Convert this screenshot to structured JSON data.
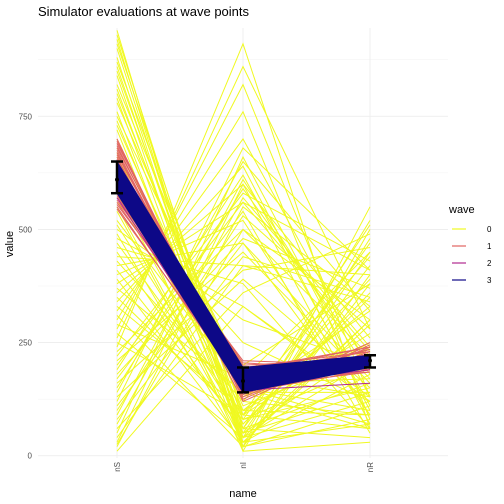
{
  "chart_data": {
    "type": "line",
    "title": "Simulator evaluations at wave points",
    "xlabel": "name",
    "ylabel": "value",
    "categories": [
      "nS",
      "nI",
      "nR"
    ],
    "ylim": [
      -5,
      945
    ],
    "yticks": [
      0,
      250,
      500,
      750
    ],
    "grid": true,
    "legend": {
      "title": "wave",
      "placement": "right",
      "entries": [
        {
          "label": "0",
          "color": "#F0F921"
        },
        {
          "label": "1",
          "color": "#E16462"
        },
        {
          "label": "2",
          "color": "#B12A90"
        },
        {
          "label": "3",
          "color": "#0D0887"
        }
      ]
    },
    "series": [
      {
        "wave": "0",
        "color": "#F0F921",
        "lines": [
          [
            940,
            10,
            30
          ],
          [
            930,
            60,
            40
          ],
          [
            920,
            20,
            80
          ],
          [
            910,
            90,
            60
          ],
          [
            900,
            40,
            120
          ],
          [
            880,
            30,
            70
          ],
          [
            870,
            120,
            90
          ],
          [
            860,
            50,
            140
          ],
          [
            850,
            80,
            200
          ],
          [
            840,
            20,
            110
          ],
          [
            820,
            150,
            100
          ],
          [
            810,
            60,
            160
          ],
          [
            800,
            100,
            250
          ],
          [
            790,
            40,
            300
          ],
          [
            780,
            140,
            60
          ],
          [
            760,
            30,
            180
          ],
          [
            750,
            180,
            130
          ],
          [
            740,
            70,
            350
          ],
          [
            730,
            110,
            220
          ],
          [
            720,
            20,
            400
          ],
          [
            700,
            90,
            270
          ],
          [
            680,
            160,
            170
          ],
          [
            670,
            50,
            450
          ],
          [
            660,
            130,
            320
          ],
          [
            650,
            80,
            150
          ],
          [
            640,
            200,
            380
          ],
          [
            620,
            10,
            500
          ],
          [
            600,
            100,
            90
          ],
          [
            580,
            60,
            420
          ],
          [
            560,
            250,
            120
          ],
          [
            550,
            40,
            480
          ],
          [
            540,
            30,
            300
          ],
          [
            520,
            150,
            70
          ],
          [
            510,
            70,
            360
          ],
          [
            500,
            300,
            200
          ],
          [
            490,
            20,
            550
          ],
          [
            480,
            330,
            130
          ],
          [
            470,
            90,
            390
          ],
          [
            460,
            380,
            60
          ],
          [
            450,
            50,
            240
          ],
          [
            440,
            420,
            340
          ],
          [
            430,
            120,
            440
          ],
          [
            420,
            470,
            170
          ],
          [
            410,
            60,
            520
          ],
          [
            400,
            520,
            90
          ],
          [
            390,
            30,
            290
          ],
          [
            380,
            560,
            410
          ],
          [
            370,
            140,
            140
          ],
          [
            360,
            600,
            260
          ],
          [
            350,
            80,
            470
          ],
          [
            340,
            640,
            100
          ],
          [
            330,
            100,
            330
          ],
          [
            320,
            700,
            190
          ],
          [
            310,
            20,
            380
          ],
          [
            300,
            760,
            80
          ],
          [
            290,
            170,
            450
          ],
          [
            280,
            820,
            130
          ],
          [
            270,
            40,
            210
          ],
          [
            260,
            860,
            280
          ],
          [
            250,
            90,
            510
          ],
          [
            240,
            910,
            60
          ],
          [
            230,
            500,
            300
          ],
          [
            220,
            580,
            430
          ],
          [
            210,
            450,
            160
          ],
          [
            200,
            560,
            230
          ],
          [
            190,
            620,
            110
          ],
          [
            180,
            480,
            370
          ],
          [
            170,
            540,
            50
          ],
          [
            160,
            410,
            460
          ],
          [
            150,
            590,
            200
          ],
          [
            140,
            650,
            320
          ],
          [
            130,
            390,
            150
          ],
          [
            120,
            680,
            410
          ],
          [
            110,
            470,
            90
          ],
          [
            100,
            530,
            280
          ],
          [
            90,
            610,
            180
          ],
          [
            80,
            440,
            350
          ],
          [
            70,
            570,
            240
          ],
          [
            60,
            360,
            490
          ],
          [
            50,
            660,
            130
          ],
          [
            40,
            420,
            400
          ],
          [
            30,
            600,
            70
          ],
          [
            25,
            500,
            220
          ],
          [
            20,
            550,
            330
          ],
          [
            10,
            330,
            120
          ]
        ]
      },
      {
        "wave": "1",
        "color": "#E16462",
        "lines": [
          [
            700,
            125,
            250
          ],
          [
            695,
            130,
            240
          ],
          [
            690,
            150,
            200
          ],
          [
            685,
            135,
            230
          ],
          [
            680,
            160,
            220
          ],
          [
            675,
            140,
            190
          ],
          [
            670,
            145,
            210
          ],
          [
            665,
            155,
            235
          ],
          [
            660,
            120,
            245
          ],
          [
            655,
            170,
            215
          ],
          [
            650,
            175,
            205
          ],
          [
            645,
            165,
            225
          ],
          [
            640,
            180,
            195
          ],
          [
            635,
            185,
            230
          ],
          [
            630,
            150,
            185
          ],
          [
            625,
            190,
            240
          ],
          [
            620,
            195,
            200
          ],
          [
            615,
            160,
            210
          ],
          [
            610,
            140,
            225
          ],
          [
            605,
            200,
            215
          ],
          [
            600,
            205,
            190
          ],
          [
            595,
            170,
            235
          ],
          [
            590,
            145,
            205
          ],
          [
            585,
            180,
            220
          ],
          [
            580,
            210,
            200
          ],
          [
            575,
            155,
            190
          ],
          [
            570,
            195,
            230
          ],
          [
            565,
            175,
            210
          ],
          [
            560,
            165,
            185
          ],
          [
            555,
            185,
            240
          ],
          [
            550,
            150,
            195
          ],
          [
            545,
            160,
            220
          ]
        ]
      },
      {
        "wave": "2",
        "color": "#B12A90",
        "lines": [
          [
            620,
            150,
            210
          ],
          [
            610,
            160,
            200
          ],
          [
            600,
            140,
            215
          ],
          [
            590,
            170,
            205
          ],
          [
            580,
            155,
            190
          ],
          [
            570,
            145,
            160
          ]
        ]
      },
      {
        "wave": "3",
        "color": "#0D0887",
        "band": {
          "lower": [
            580,
            140,
            195
          ],
          "upper": [
            650,
            195,
            222
          ]
        }
      }
    ],
    "error_bars": [
      {
        "category": "nS",
        "low": 580,
        "mid": 610,
        "high": 650
      },
      {
        "category": "nI",
        "low": 140,
        "mid": 165,
        "high": 195
      },
      {
        "category": "nR",
        "low": 195,
        "mid": 210,
        "high": 222
      }
    ]
  }
}
